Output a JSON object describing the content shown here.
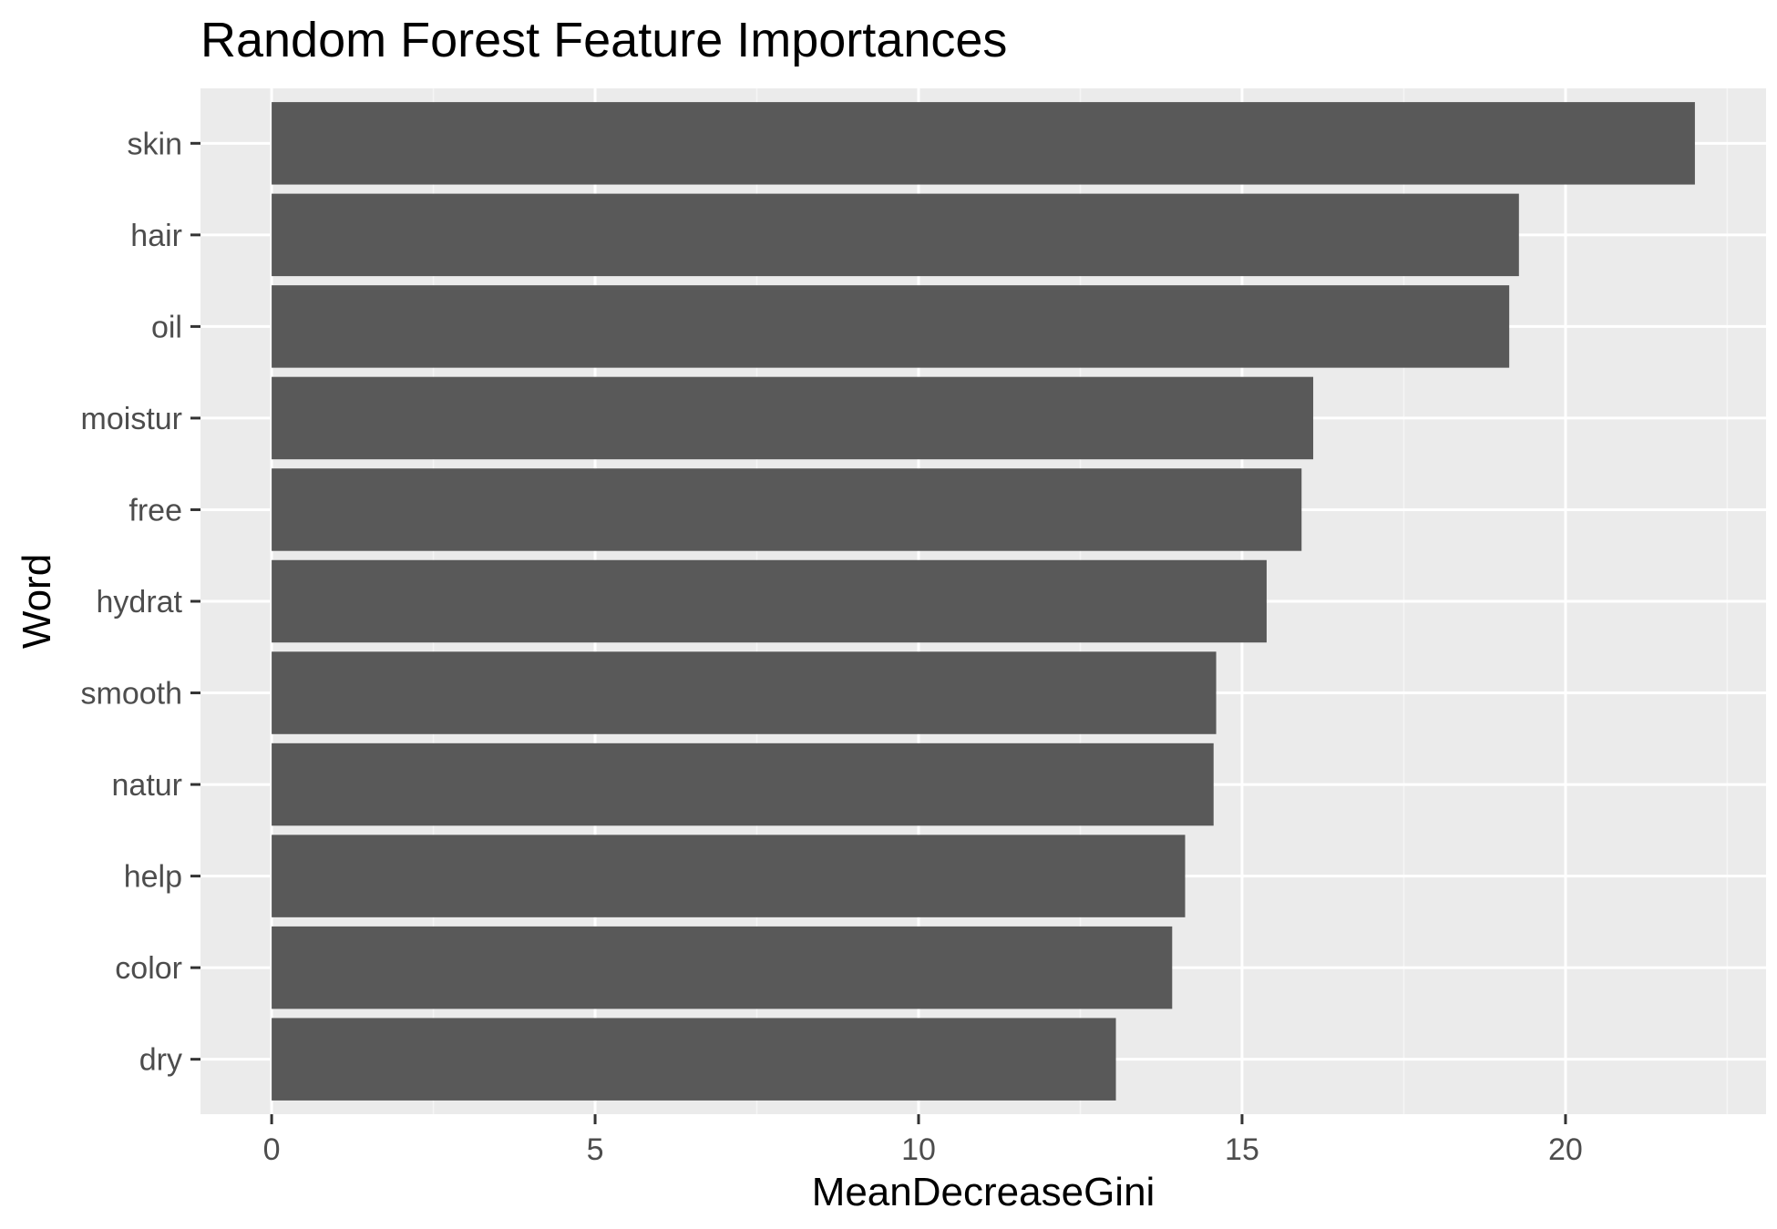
{
  "chart_data": {
    "type": "bar",
    "orientation": "horizontal",
    "title": "Random Forest Feature Importances",
    "xlabel": "MeanDecreaseGini",
    "ylabel": "Word",
    "categories": [
      "skin",
      "hair",
      "oil",
      "moistur",
      "free",
      "hydrat",
      "smooth",
      "natur",
      "help",
      "color",
      "dry"
    ],
    "values": [
      22.0,
      19.28,
      19.13,
      16.1,
      15.92,
      15.38,
      14.6,
      14.56,
      14.12,
      13.92,
      13.05
    ],
    "xlim": [
      -1.1,
      23.1
    ],
    "xticks": [
      0,
      5,
      10,
      15,
      20
    ],
    "xtick_labels": [
      "0",
      "5",
      "10",
      "15",
      "20"
    ],
    "grid": true,
    "legend": "none",
    "colors": {
      "bar": "#595959",
      "panel_background": "#ebebeb",
      "grid_major": "#ffffff",
      "grid_minor": "#f5f5f5",
      "tick_mark": "#333333",
      "tick_label": "#4d4d4d",
      "text": "#000000"
    }
  }
}
